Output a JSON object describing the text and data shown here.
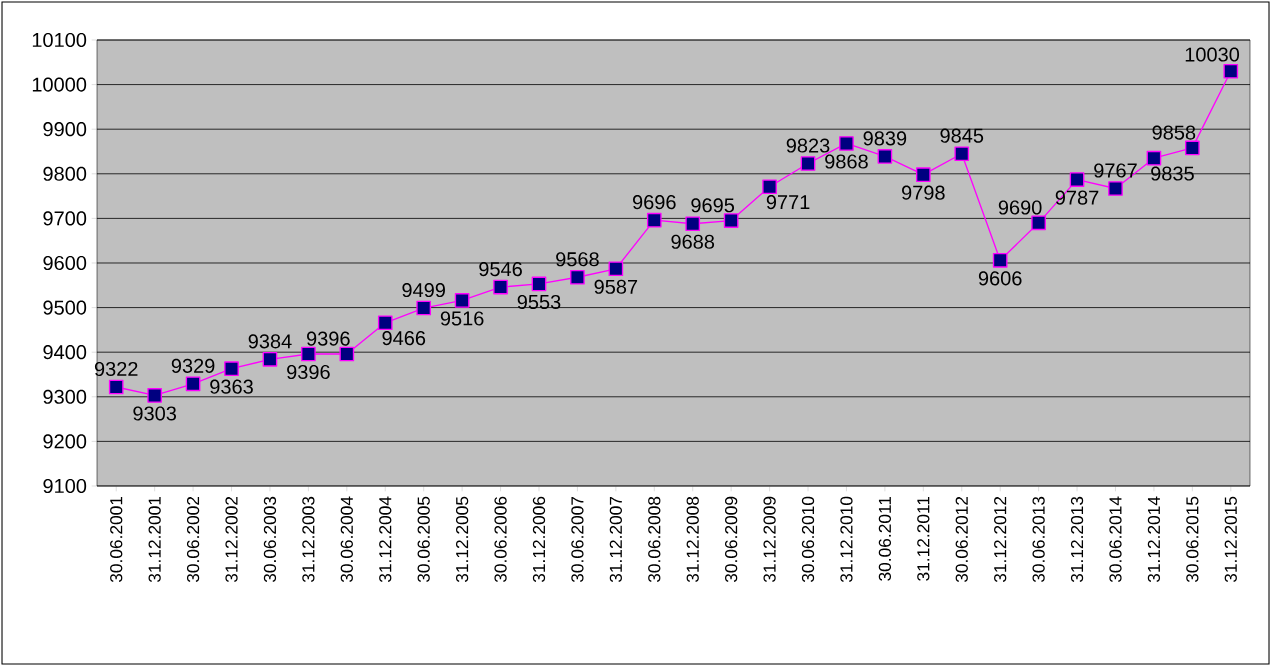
{
  "chart_data": {
    "type": "line",
    "categories": [
      "30.06.2001",
      "31.12.2001",
      "30.06.2002",
      "31.12.2002",
      "30.06.2003",
      "31.12.2003",
      "30.06.2004",
      "31.12.2004",
      "30.06.2005",
      "31.12.2005",
      "30.06.2006",
      "31.12.2006",
      "30.06.2007",
      "31.12.2007",
      "30.06.2008",
      "31.12.2008",
      "30.06.2009",
      "31.12.2009",
      "30.06.2010",
      "31.12.2010",
      "30.06.2011",
      "31.12.2011",
      "30.06.2012",
      "31.12.2012",
      "30.06.2013",
      "31.12.2013",
      "30.06.2014",
      "31.12.2014",
      "30.06.2015",
      "31.12.2015"
    ],
    "values": [
      9322,
      9303,
      9329,
      9363,
      9384,
      9396,
      9396,
      9466,
      9499,
      9516,
      9546,
      9553,
      9568,
      9587,
      9696,
      9688,
      9695,
      9771,
      9823,
      9868,
      9839,
      9798,
      9845,
      9606,
      9690,
      9787,
      9767,
      9835,
      9858,
      10030
    ],
    "color": "#ff00ff",
    "marker": "square",
    "line_style": "solid",
    "data_labels": true,
    "grid": "y",
    "ylim": [
      9100,
      10100
    ],
    "yticks": [
      9100,
      9200,
      9300,
      9400,
      9500,
      9600,
      9700,
      9800,
      9900,
      10000,
      10100
    ]
  }
}
